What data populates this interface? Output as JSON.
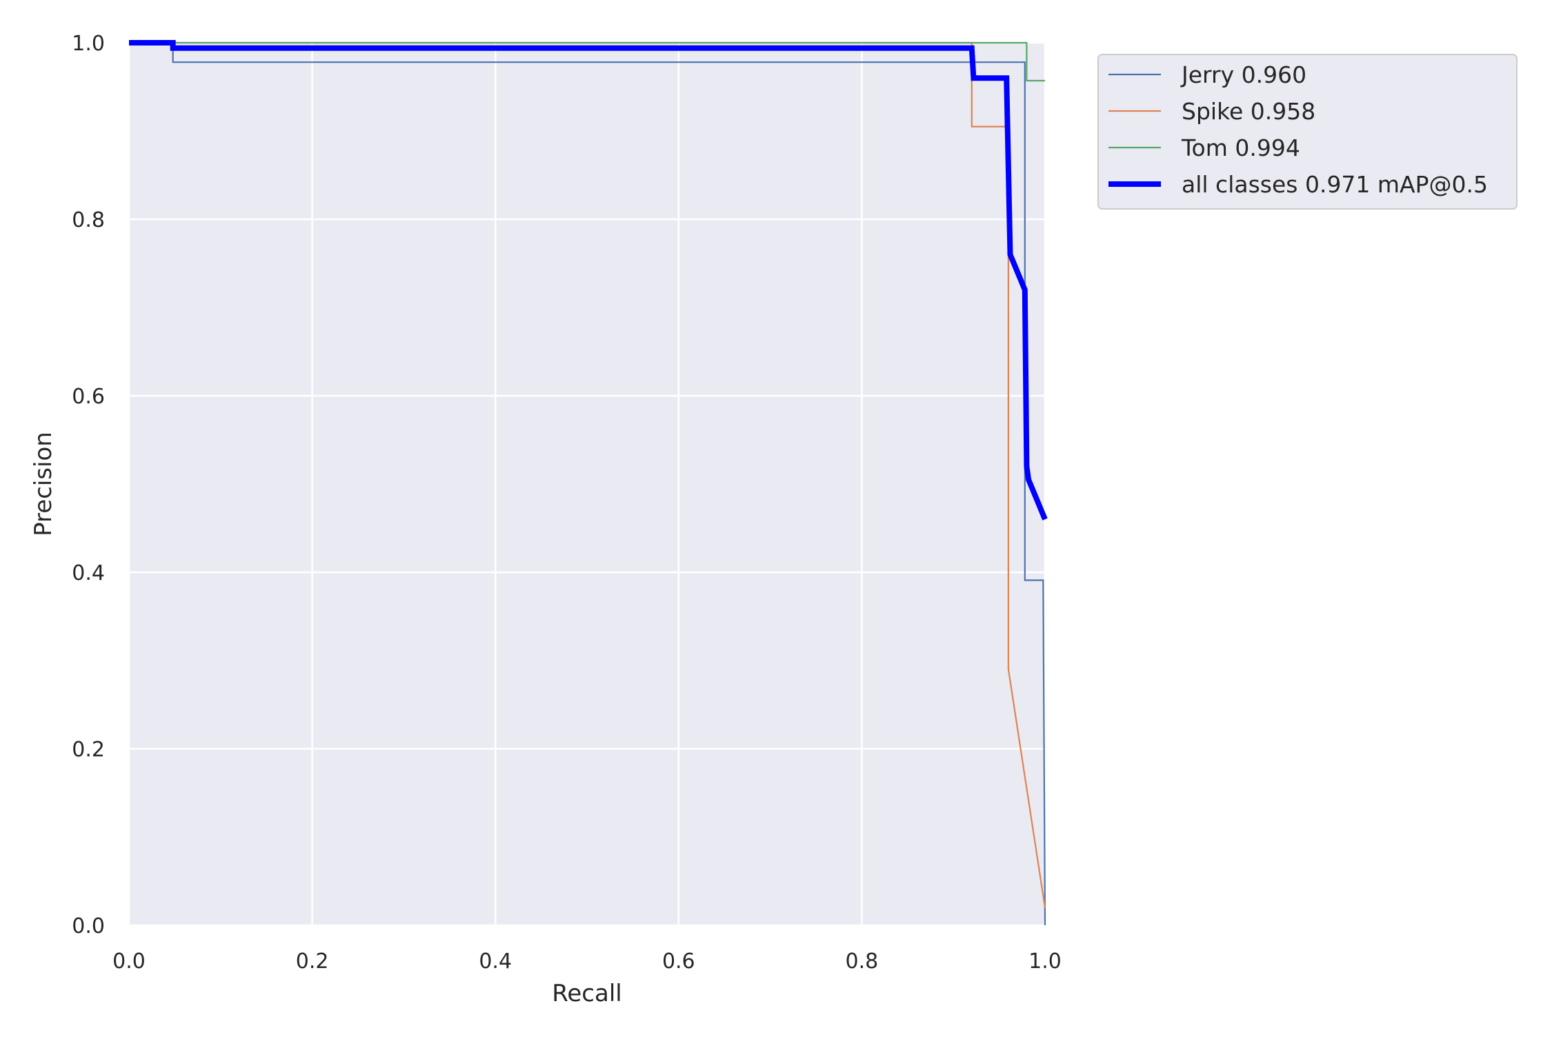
{
  "chart_data": {
    "type": "line",
    "title": "",
    "xlabel": "Recall",
    "ylabel": "Precision",
    "xlim": [
      0,
      1
    ],
    "ylim": [
      0,
      1
    ],
    "xticks": [
      "0.0",
      "0.2",
      "0.4",
      "0.6",
      "0.8",
      "1.0"
    ],
    "yticks": [
      "0.0",
      "0.2",
      "0.4",
      "0.6",
      "0.8",
      "1.0"
    ],
    "grid": true,
    "legend_position": "outside-top-right",
    "series": [
      {
        "name": "Jerry 0.960",
        "color": "#4c72b0",
        "width": "thin",
        "points": [
          [
            0.0,
            1.0
          ],
          [
            0.048,
            1.0
          ],
          [
            0.048,
            0.978
          ],
          [
            0.978,
            0.978
          ],
          [
            0.978,
            0.391
          ],
          [
            0.998,
            0.391
          ],
          [
            1.0,
            0.0
          ]
        ]
      },
      {
        "name": "Spike 0.958",
        "color": "#dd8452",
        "width": "thin",
        "points": [
          [
            0.0,
            1.0
          ],
          [
            0.92,
            1.0
          ],
          [
            0.92,
            0.905
          ],
          [
            0.96,
            0.905
          ],
          [
            0.96,
            0.29
          ],
          [
            1.0,
            0.02
          ]
        ]
      },
      {
        "name": "Tom 0.994",
        "color": "#55a868",
        "width": "thin",
        "points": [
          [
            0.0,
            1.0
          ],
          [
            0.98,
            1.0
          ],
          [
            0.98,
            0.957
          ],
          [
            1.0,
            0.957
          ]
        ]
      },
      {
        "name": "all classes 0.971 mAP@0.5",
        "color": "#0000ff",
        "width": "thick",
        "points": [
          [
            0.0,
            1.0
          ],
          [
            0.048,
            1.0
          ],
          [
            0.048,
            0.994
          ],
          [
            0.92,
            0.994
          ],
          [
            0.922,
            0.96
          ],
          [
            0.958,
            0.96
          ],
          [
            0.962,
            0.76
          ],
          [
            0.978,
            0.72
          ],
          [
            0.98,
            0.52
          ],
          [
            0.982,
            0.505
          ],
          [
            1.0,
            0.46
          ]
        ]
      }
    ]
  }
}
